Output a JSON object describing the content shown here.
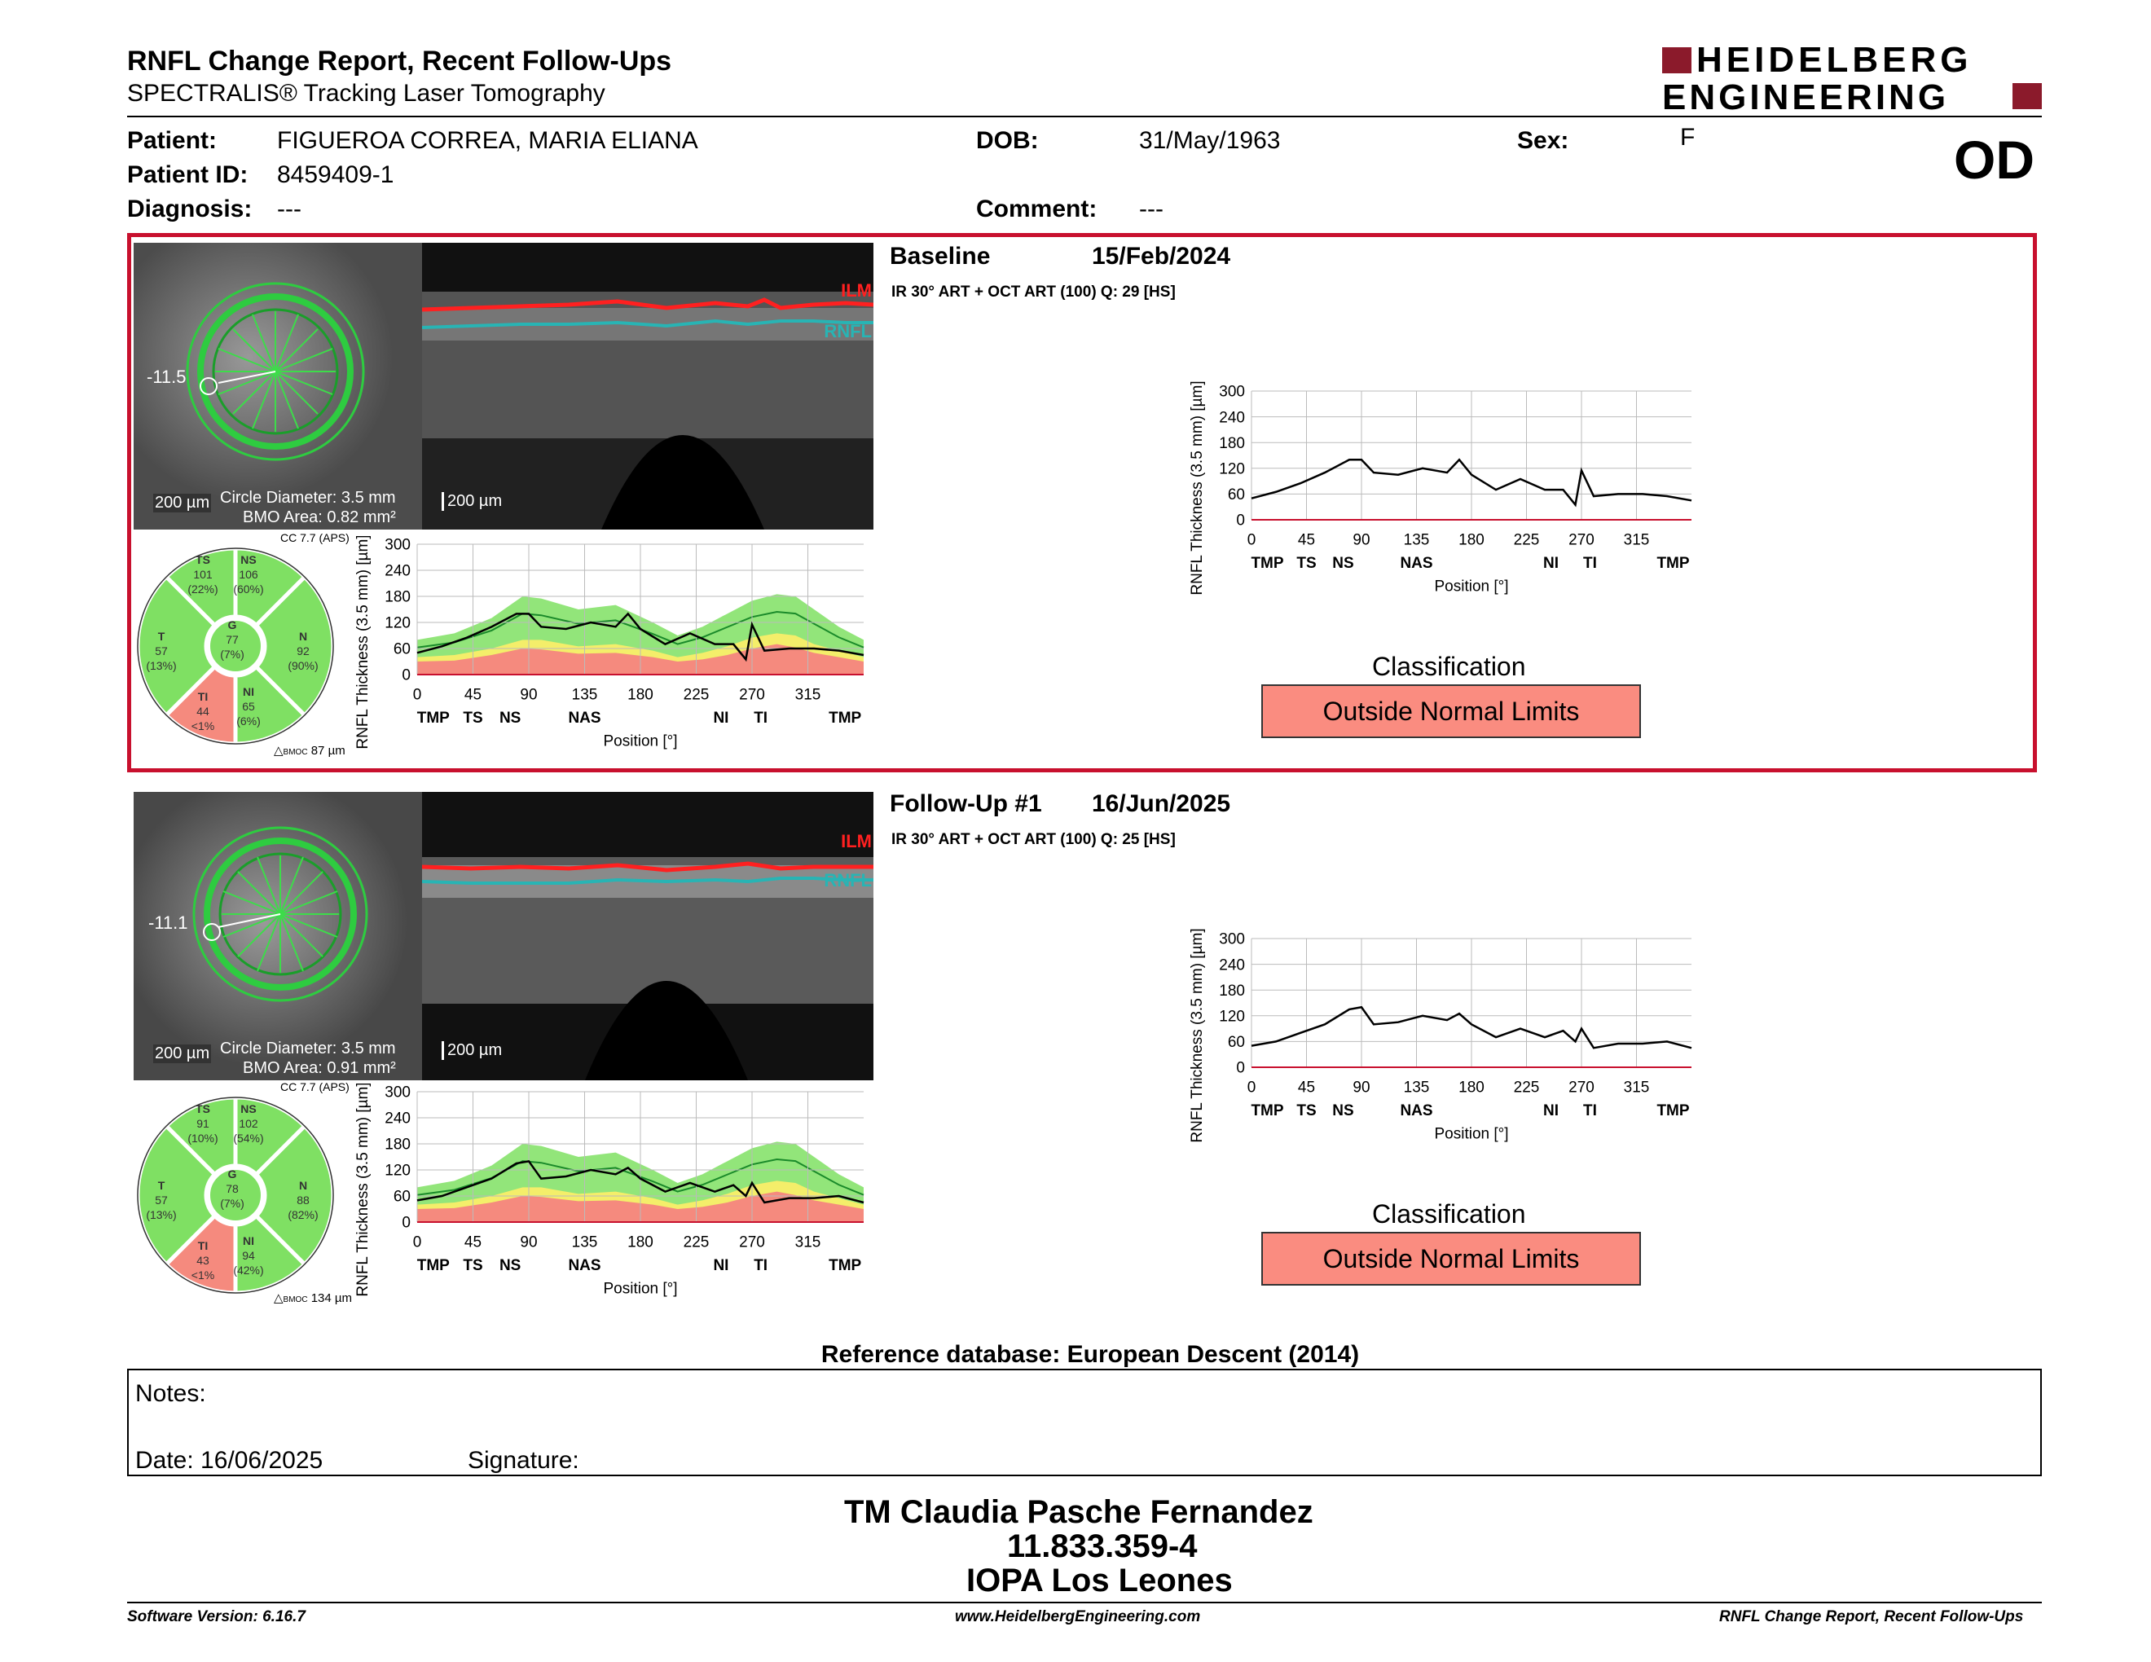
{
  "header": {
    "title": "RNFL Change Report, Recent Follow-Ups",
    "subtitle": "SPECTRALIS® Tracking Laser Tomography",
    "brand_line1": "HEIDELBERG",
    "brand_line2": "ENGINEERING",
    "brand_color": "#8b1a2b"
  },
  "patient": {
    "patient_label": "Patient:",
    "patient_value": "FIGUEROA CORREA, MARIA ELIANA",
    "id_label": "Patient ID:",
    "id_value": "8459409-1",
    "diagnosis_label": "Diagnosis:",
    "diagnosis_value": "---",
    "dob_label": "DOB:",
    "dob_value": "31/May/1963",
    "comment_label": "Comment:",
    "comment_value": "---",
    "sex_label": "Sex:",
    "sex_value": "F",
    "eye": "OD"
  },
  "exams": [
    {
      "name": "Baseline",
      "date": "15/Feb/2024",
      "protocol": "IR 30° ART + OCT ART (100) Q: 29 [HS]",
      "fundus": {
        "angle": "-11.5",
        "scale": "200 µm",
        "circle": "Circle Diameter: 3.5 mm",
        "bmo": "BMO Area: 0.82 mm²"
      },
      "oct": {
        "scale": "200 µm",
        "ilm": "ILM",
        "rnfl": "RNFL"
      },
      "sectors": {
        "cc": "CC 7.7 (APS)",
        "TS": [
          "TS",
          "101",
          "(22%)"
        ],
        "NS": [
          "NS",
          "106",
          "(60%)"
        ],
        "T": [
          "T",
          "57",
          "(13%)"
        ],
        "G": [
          "G",
          "77",
          "(7%)"
        ],
        "N": [
          "N",
          "92",
          "(90%)"
        ],
        "TI": [
          "TI",
          "44",
          "<1%"
        ],
        "NI": [
          "NI",
          "65",
          "(6%)"
        ],
        "bmo": "87 µm",
        "bmo_prefix": "BMOC"
      },
      "classification_label": "Classification",
      "classification": "Outside Normal Limits"
    },
    {
      "name": "Follow-Up #1",
      "date": "16/Jun/2025",
      "protocol": "IR 30° ART + OCT ART (100) Q: 25 [HS]",
      "fundus": {
        "angle": "-11.1",
        "scale": "200 µm",
        "circle": "Circle Diameter: 3.5 mm",
        "bmo": "BMO Area: 0.91 mm²"
      },
      "oct": {
        "scale": "200 µm",
        "ilm": "ILM",
        "rnfl": "RNFL"
      },
      "sectors": {
        "cc": "CC 7.7 (APS)",
        "TS": [
          "TS",
          "91",
          "(10%)"
        ],
        "NS": [
          "NS",
          "102",
          "(54%)"
        ],
        "T": [
          "T",
          "57",
          "(13%)"
        ],
        "G": [
          "G",
          "78",
          "(7%)"
        ],
        "N": [
          "N",
          "88",
          "(82%)"
        ],
        "TI": [
          "TI",
          "43",
          "<1%"
        ],
        "NI": [
          "NI",
          "94",
          "(42%)"
        ],
        "bmo": "134 µm",
        "bmo_prefix": "BMOC"
      },
      "classification_label": "Classification",
      "classification": "Outside Normal Limits"
    }
  ],
  "chart_axes": {
    "ylabel": "RNFL Thickness (3.5 mm) [µm]",
    "xlabel": "Position [°]",
    "yticks": [
      "0",
      "60",
      "120",
      "180",
      "240",
      "300"
    ],
    "xticks": [
      "0",
      "45",
      "90",
      "135",
      "180",
      "225",
      "270",
      "315"
    ],
    "regions": [
      "TMP",
      "TS",
      "NS",
      "NAS",
      "NI",
      "TI",
      "TMP"
    ]
  },
  "chart_data": [
    {
      "type": "line",
      "title": "",
      "xlabel": "Position [°]",
      "ylabel": "RNFL Thickness (3.5 mm) [µm]",
      "xlim": [
        0,
        360
      ],
      "ylim": [
        0,
        300
      ],
      "x": [
        0,
        20,
        40,
        60,
        80,
        90,
        100,
        120,
        140,
        160,
        170,
        180,
        200,
        220,
        240,
        255,
        265,
        270,
        280,
        300,
        320,
        340,
        360
      ],
      "series": [
        {
          "values": [
            50,
            65,
            85,
            110,
            140,
            140,
            110,
            105,
            120,
            110,
            140,
            105,
            70,
            95,
            70,
            70,
            35,
            115,
            55,
            60,
            60,
            55,
            45
          ]
        }
      ]
    },
    {
      "type": "line",
      "title": "",
      "xlabel": "Position [°]",
      "ylabel": "RNFL Thickness (3.5 mm) [µm]",
      "xlim": [
        0,
        360
      ],
      "ylim": [
        0,
        300
      ],
      "x": [
        0,
        20,
        40,
        60,
        80,
        90,
        100,
        120,
        140,
        160,
        170,
        180,
        200,
        220,
        240,
        255,
        265,
        270,
        280,
        300,
        320,
        340,
        360
      ],
      "series": [
        {
          "values": [
            50,
            60,
            80,
            100,
            135,
            140,
            100,
            105,
            120,
            110,
            125,
            100,
            70,
            90,
            70,
            85,
            60,
            90,
            45,
            55,
            55,
            60,
            45
          ]
        }
      ]
    }
  ],
  "reference": "Reference database: European Descent (2014)",
  "notes": {
    "label": "Notes:",
    "date": "Date: 16/06/2025",
    "signature": "Signature:"
  },
  "signer": {
    "name": "TM Claudia Pasche Fernandez",
    "id": "11.833.359-4",
    "org": "IOPA Los Leones"
  },
  "footer": {
    "version": "Software Version: 6.16.7",
    "url": "www.HeidelbergEngineering.com",
    "report": "RNFL Change Report, Recent Follow-Ups"
  },
  "colors": {
    "normal": "#7fe063",
    "borderline": "#f4ee6a",
    "outside": "#f58a7e",
    "panel_red": "#c8102e"
  }
}
